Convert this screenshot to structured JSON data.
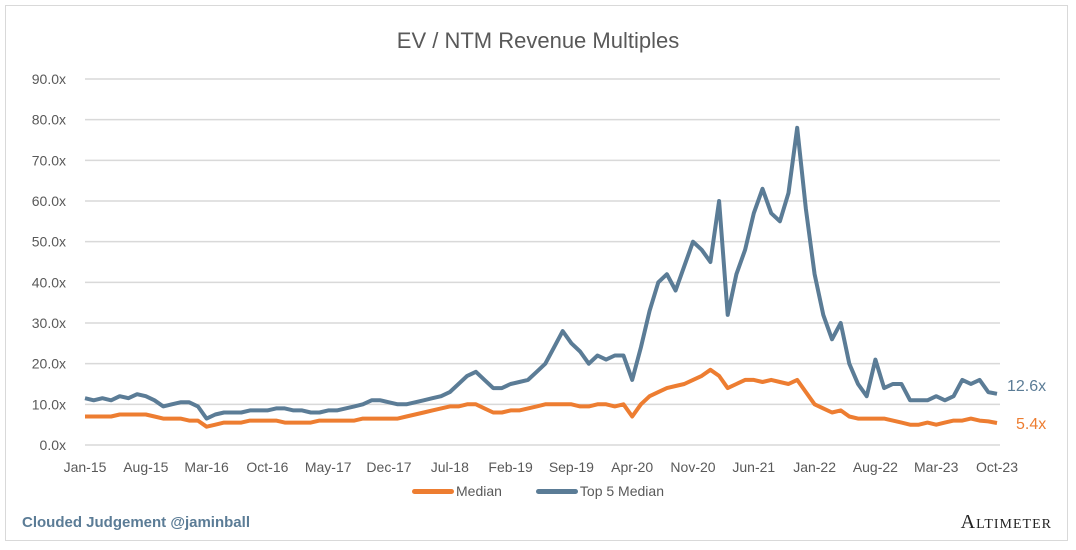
{
  "chart_data": {
    "type": "line",
    "title": "EV / NTM Revenue Multiples",
    "x_tick_labels": [
      "Jan-15",
      "Aug-15",
      "Mar-16",
      "Oct-16",
      "May-17",
      "Dec-17",
      "Jul-18",
      "Feb-19",
      "Sep-19",
      "Apr-20",
      "Nov-20",
      "Jun-21",
      "Jan-22",
      "Aug-22",
      "Mar-23",
      "Oct-23"
    ],
    "x_start": "Jan-15",
    "x_end": "Oct-23",
    "x_frequency": "monthly",
    "y_tick_labels": [
      "0.0x",
      "10.0x",
      "20.0x",
      "30.0x",
      "40.0x",
      "50.0x",
      "60.0x",
      "70.0x",
      "80.0x",
      "90.0x"
    ],
    "ylim": [
      0,
      90
    ],
    "grid": "horizontal",
    "legend_position": "bottom",
    "series": [
      {
        "name": "Median",
        "color": "#ed7d31",
        "end_label": "5.4x",
        "values": [
          7,
          7,
          7,
          7,
          7.5,
          7.5,
          7.5,
          7.5,
          7,
          6.5,
          6.5,
          6.5,
          6,
          6,
          4.5,
          5,
          5.5,
          5.5,
          5.5,
          6,
          6,
          6,
          6,
          5.5,
          5.5,
          5.5,
          5.5,
          6,
          6,
          6,
          6,
          6,
          6.5,
          6.5,
          6.5,
          6.5,
          6.5,
          7,
          7.5,
          8,
          8.5,
          9,
          9.5,
          9.5,
          10,
          10,
          9,
          8,
          8,
          8.5,
          8.5,
          9,
          9.5,
          10,
          10,
          10,
          10,
          9.5,
          9.5,
          10,
          10,
          9.5,
          10,
          7,
          10,
          12,
          13,
          14,
          14.5,
          15,
          16,
          17,
          18.5,
          17,
          14,
          15,
          16,
          16,
          15.5,
          16,
          15.5,
          15,
          16,
          13,
          10,
          9,
          8,
          8.5,
          7,
          6.5,
          6.5,
          6.5,
          6.5,
          6,
          5.5,
          5,
          5,
          5.5,
          5,
          5.5,
          6,
          6,
          6.5,
          6,
          5.8,
          5.4
        ]
      },
      {
        "name": "Top 5 Median",
        "color": "#5b7c96",
        "end_label": "12.6x",
        "values": [
          11.5,
          11,
          11.5,
          11,
          12,
          11.5,
          12.5,
          12,
          11,
          9.5,
          10,
          10.5,
          10.5,
          9.5,
          6.5,
          7.5,
          8,
          8,
          8,
          8.5,
          8.5,
          8.5,
          9,
          9,
          8.5,
          8.5,
          8,
          8,
          8.5,
          8.5,
          9,
          9.5,
          10,
          11,
          11,
          10.5,
          10,
          10,
          10.5,
          11,
          11.5,
          12,
          13,
          15,
          17,
          18,
          16,
          14,
          14,
          15,
          15.5,
          16,
          18,
          20,
          24,
          28,
          25,
          23,
          20,
          22,
          21,
          22,
          22,
          16,
          24,
          33,
          40,
          42,
          38,
          44,
          50,
          48,
          45,
          60,
          32,
          42,
          48,
          57,
          63,
          57,
          55,
          62,
          78,
          58,
          42,
          32,
          26,
          30,
          20,
          15,
          12,
          21,
          14,
          15,
          15,
          11,
          11,
          11,
          12,
          11,
          12,
          16,
          15,
          16,
          13,
          12.6
        ]
      }
    ]
  },
  "footer": {
    "credit": "Clouded Judgement @jaminball",
    "brand": "Altimeter"
  }
}
